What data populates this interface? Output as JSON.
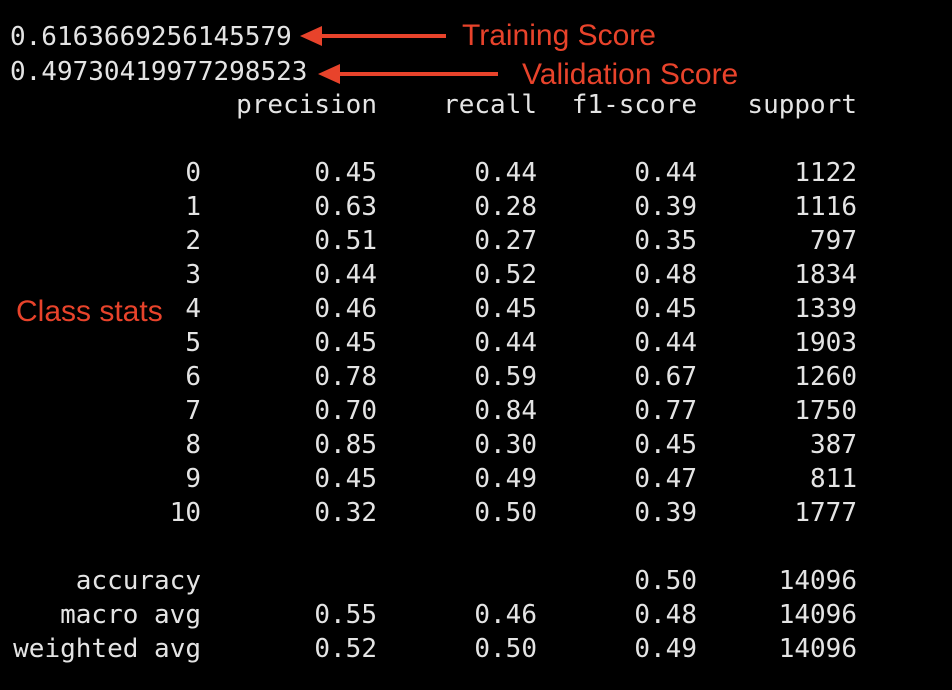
{
  "terminal": {
    "training_score_value": "0.6163669256145579",
    "validation_score_value": "0.49730419977298523",
    "report": {
      "headers": [
        "precision",
        "recall",
        "f1-score",
        "support"
      ],
      "rows": [
        {
          "label": "0",
          "precision": "0.45",
          "recall": "0.44",
          "f1": "0.44",
          "support": "1122"
        },
        {
          "label": "1",
          "precision": "0.63",
          "recall": "0.28",
          "f1": "0.39",
          "support": "1116"
        },
        {
          "label": "2",
          "precision": "0.51",
          "recall": "0.27",
          "f1": "0.35",
          "support": "797"
        },
        {
          "label": "3",
          "precision": "0.44",
          "recall": "0.52",
          "f1": "0.48",
          "support": "1834"
        },
        {
          "label": "4",
          "precision": "0.46",
          "recall": "0.45",
          "f1": "0.45",
          "support": "1339"
        },
        {
          "label": "5",
          "precision": "0.45",
          "recall": "0.44",
          "f1": "0.44",
          "support": "1903"
        },
        {
          "label": "6",
          "precision": "0.78",
          "recall": "0.59",
          "f1": "0.67",
          "support": "1260"
        },
        {
          "label": "7",
          "precision": "0.70",
          "recall": "0.84",
          "f1": "0.77",
          "support": "1750"
        },
        {
          "label": "8",
          "precision": "0.85",
          "recall": "0.30",
          "f1": "0.45",
          "support": "387"
        },
        {
          "label": "9",
          "precision": "0.45",
          "recall": "0.49",
          "f1": "0.47",
          "support": "811"
        },
        {
          "label": "10",
          "precision": "0.32",
          "recall": "0.50",
          "f1": "0.39",
          "support": "1777"
        }
      ],
      "summary": [
        {
          "label": "accuracy",
          "precision": "",
          "recall": "",
          "f1": "0.50",
          "support": "14096"
        },
        {
          "label": "macro avg",
          "precision": "0.55",
          "recall": "0.46",
          "f1": "0.48",
          "support": "14096"
        },
        {
          "label": "weighted avg",
          "precision": "0.52",
          "recall": "0.50",
          "f1": "0.49",
          "support": "14096"
        }
      ]
    }
  },
  "annotations": {
    "training": "Training Score",
    "validation": "Validation Score",
    "class_stats": "Class stats",
    "color": "#e8432b"
  },
  "colors": {
    "background": "#000000",
    "text": "#e4e4e4",
    "annotation": "#e8432b"
  }
}
